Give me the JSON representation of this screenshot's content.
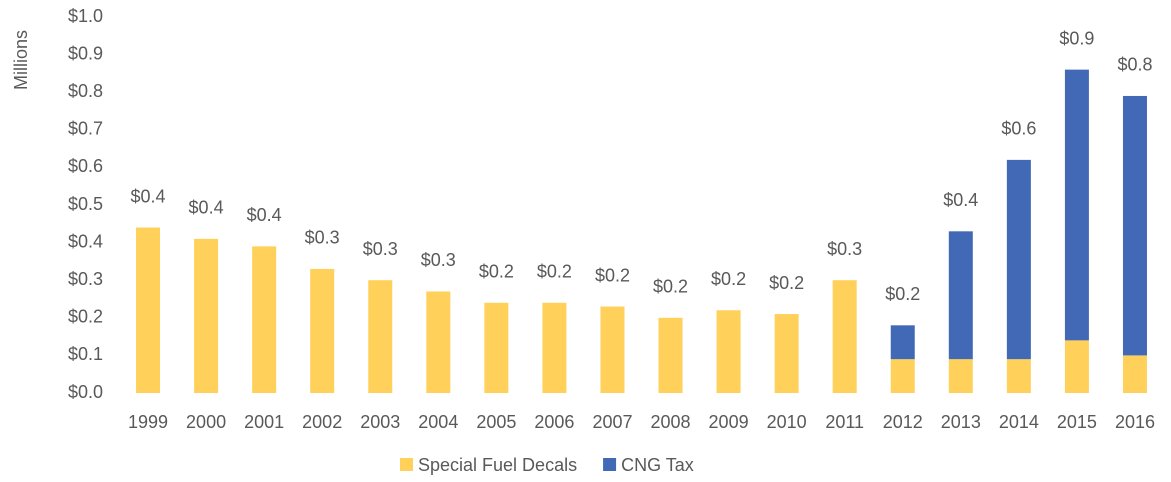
{
  "chart_data": {
    "type": "stacked_bar",
    "y_axis_label": "Millions",
    "categories": [
      "1999",
      "2000",
      "2001",
      "2002",
      "2003",
      "2004",
      "2005",
      "2006",
      "2007",
      "2008",
      "2009",
      "2010",
      "2011",
      "2012",
      "2013",
      "2014",
      "2015",
      "2016"
    ],
    "series": [
      {
        "name": "Special Fuel Decals",
        "color": "#ffd05a",
        "values": [
          0.44,
          0.41,
          0.39,
          0.33,
          0.3,
          0.27,
          0.24,
          0.24,
          0.23,
          0.2,
          0.22,
          0.21,
          0.3,
          0.09,
          0.09,
          0.09,
          0.14,
          0.1
        ]
      },
      {
        "name": "CNG Tax",
        "color": "#4169b5",
        "values": [
          null,
          null,
          null,
          null,
          null,
          null,
          null,
          null,
          null,
          null,
          null,
          null,
          null,
          0.09,
          0.34,
          0.53,
          0.72,
          0.69
        ]
      }
    ],
    "totals": [
      0.44,
      0.41,
      0.39,
      0.33,
      0.3,
      0.27,
      0.24,
      0.24,
      0.23,
      0.2,
      0.22,
      0.21,
      0.3,
      0.18,
      0.43,
      0.62,
      0.86,
      0.79
    ],
    "total_labels": [
      "$0.4",
      "$0.4",
      "$0.4",
      "$0.3",
      "$0.3",
      "$0.3",
      "$0.2",
      "$0.2",
      "$0.2",
      "$0.2",
      "$0.2",
      "$0.2",
      "$0.3",
      "$0.2",
      "$0.4",
      "$0.6",
      "$0.9",
      "$0.8"
    ],
    "ylim": [
      0,
      1.0
    ],
    "yticks": [
      {
        "value": 0,
        "label": "$0.0"
      },
      {
        "value": 0.1,
        "label": "$0.1"
      },
      {
        "value": 0.2,
        "label": "$0.2"
      },
      {
        "value": 0.3,
        "label": "$0.3"
      },
      {
        "value": 0.4,
        "label": "$0.4"
      },
      {
        "value": 0.5,
        "label": "$0.5"
      },
      {
        "value": 0.6,
        "label": "$0.6"
      },
      {
        "value": 0.7,
        "label": "$0.7"
      },
      {
        "value": 0.8,
        "label": "$0.8"
      },
      {
        "value": 0.9,
        "label": "$0.9"
      },
      {
        "value": 1.0,
        "label": "$1.0"
      }
    ],
    "grid": false,
    "legend": "bottom"
  }
}
